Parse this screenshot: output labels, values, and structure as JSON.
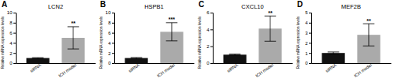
{
  "chart_data": [
    {
      "type": "bar",
      "title": "LCN2",
      "ylabel": "Relative mRNA expression levels",
      "categories": [
        "siRNA",
        "ICH model"
      ],
      "values": [
        1.0,
        5.0
      ],
      "errors": [
        0.07,
        2.2
      ],
      "colors": [
        "#111111",
        "#aaaaaa"
      ],
      "ylim": [
        0,
        10
      ],
      "yticks": [
        0,
        2,
        4,
        6,
        8,
        10
      ],
      "grid": false,
      "annotations": [
        {
          "text": "A"
        },
        {
          "text": "**",
          "x": "ICH model"
        }
      ]
    },
    {
      "type": "bar",
      "title": "HSPB1",
      "ylabel": "Relative mRNA expression levels",
      "categories": [
        "siRNA",
        "ICH model"
      ],
      "values": [
        1.0,
        6.2
      ],
      "errors": [
        0.1,
        1.8
      ],
      "colors": [
        "#111111",
        "#aaaaaa"
      ],
      "ylim": [
        0,
        10
      ],
      "yticks": [
        0,
        2,
        4,
        6,
        8,
        10
      ],
      "grid": false,
      "annotations": [
        {
          "text": "B"
        },
        {
          "text": "***",
          "x": "ICH model"
        }
      ]
    },
    {
      "type": "bar",
      "title": "CXCL10",
      "ylabel": "Relative mRNA expression levels",
      "categories": [
        "siRNA",
        "ICH model"
      ],
      "values": [
        1.0,
        4.1
      ],
      "errors": [
        0.07,
        1.5
      ],
      "colors": [
        "#111111",
        "#aaaaaa"
      ],
      "ylim": [
        0,
        6
      ],
      "yticks": [
        0,
        2,
        4,
        6
      ],
      "grid": false,
      "annotations": [
        {
          "text": "C"
        },
        {
          "text": "**",
          "x": "ICH model"
        }
      ]
    },
    {
      "type": "bar",
      "title": "MEF2B",
      "ylabel": "Relative mRNA expression levels",
      "categories": [
        "siRNA",
        "ICH model"
      ],
      "values": [
        1.0,
        2.8
      ],
      "errors": [
        0.1,
        1.1
      ],
      "colors": [
        "#111111",
        "#aaaaaa"
      ],
      "ylim": [
        0,
        5
      ],
      "yticks": [
        0,
        1,
        2,
        3,
        4,
        5
      ],
      "grid": false,
      "annotations": [
        {
          "text": "D"
        },
        {
          "text": "**",
          "x": "ICH model"
        }
      ]
    }
  ]
}
